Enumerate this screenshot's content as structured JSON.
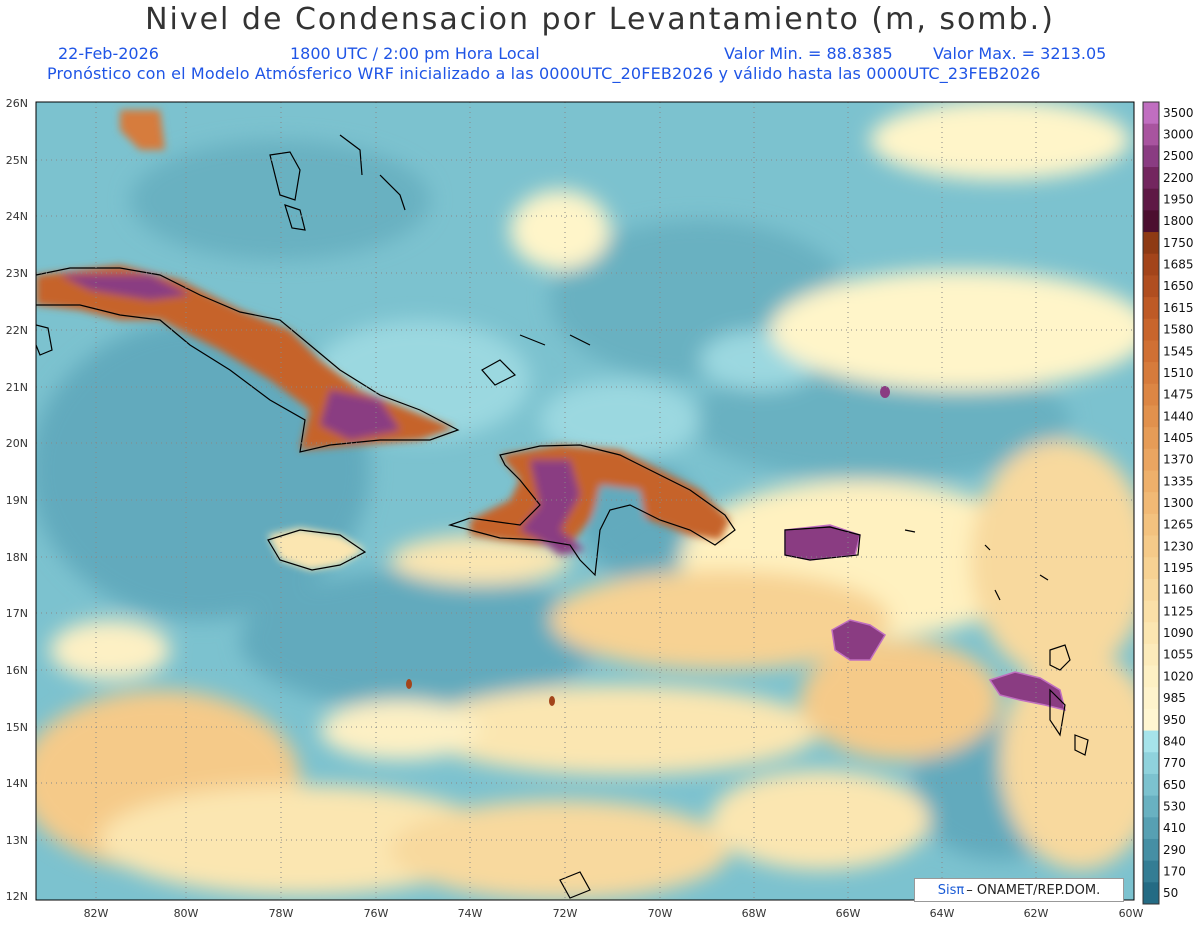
{
  "title": "Nivel de Condensacion por Levantamiento (m, somb.)",
  "date": "22-Feb-2026",
  "time": "1800 UTC / 2:00 pm Hora Local",
  "min_label": "Valor Min. = 88.8385",
  "max_label": "Valor Max. = 3213.05",
  "subtitle": "Pronóstico con el Modelo Atmósferico WRF inicializado a las 0000UTC_20FEB2026 y válido hasta las  0000UTC_23FEB2026",
  "credit": {
    "logo": "Sisπ",
    "text": "– ONAMET/REP.DOM."
  },
  "lat_ticks": [
    "26N",
    "25N",
    "24N",
    "23N",
    "22N",
    "21N",
    "20N",
    "19N",
    "18N",
    "17N",
    "16N",
    "15N",
    "14N",
    "13N",
    "12N"
  ],
  "lon_ticks": [
    "82W",
    "80W",
    "78W",
    "76W",
    "74W",
    "72W",
    "70W",
    "68W",
    "66W",
    "64W",
    "62W",
    "60W"
  ],
  "colorbar": {
    "labels": [
      "3500",
      "3000",
      "2500",
      "2200",
      "1950",
      "1800",
      "1750",
      "1685",
      "1650",
      "1615",
      "1580",
      "1545",
      "1510",
      "1475",
      "1440",
      "1405",
      "1370",
      "1335",
      "1300",
      "1265",
      "1230",
      "1195",
      "1160",
      "1125",
      "1090",
      "1055",
      "1020",
      "985",
      "950",
      "840",
      "770",
      "650",
      "530",
      "410",
      "290",
      "170",
      "50"
    ],
    "colors": [
      "#c06ec0",
      "#a8549f",
      "#8a3c82",
      "#73265f",
      "#5e1845",
      "#4c0f2f",
      "#8e3a14",
      "#a3441a",
      "#b04e20",
      "#be5a26",
      "#c8652c",
      "#d07034",
      "#d67b3c",
      "#dc8644",
      "#e1914d",
      "#e69c57",
      "#ea a561",
      "#eeb06b",
      "#f1b975",
      "#f3c27f",
      "#f5ca89",
      "#f7d293",
      "#f8d99e",
      "#fae0a8",
      "#fbe6b1",
      "#fcebbb",
      "#fdf0c4",
      "#fef3cc",
      "#fff6d2",
      "#a6e3ea",
      "#8fd2dc",
      "#7cc2cf",
      "#69b1c1",
      "#57a0b3",
      "#468fa4",
      "#347d94",
      "#246b84"
    ]
  },
  "colors": {
    "ocean_shallow": "#7cc2cf",
    "ocean_deep": "#5aa3b6",
    "land_high": "#b55a23",
    "land_peak": "#7a2f6e",
    "warm": "#f6d48f",
    "pale": "#fff5c9"
  },
  "map": {
    "projection": "lat-lon",
    "lon_range": [
      "83W",
      "60W"
    ],
    "lat_range": [
      "12N",
      "26N"
    ]
  }
}
